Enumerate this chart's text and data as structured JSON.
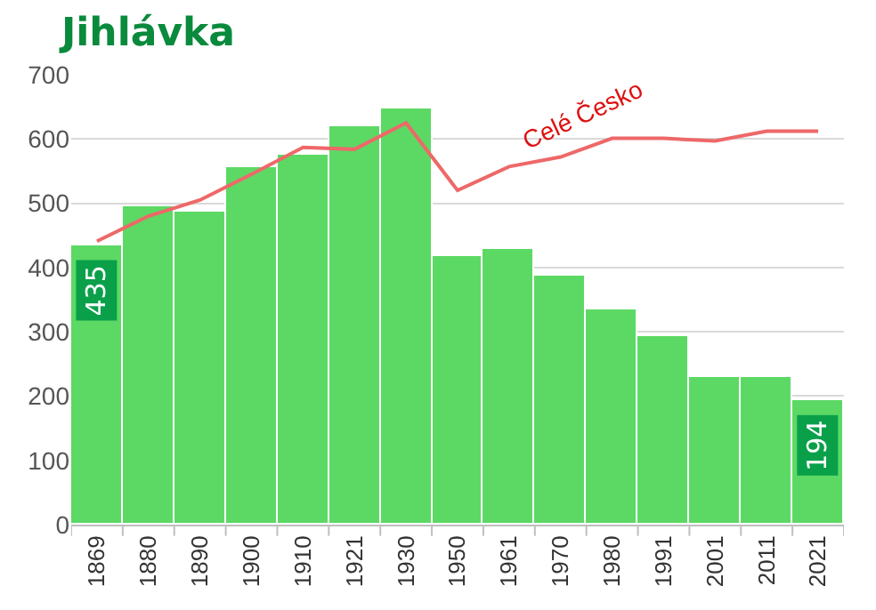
{
  "chart_data": {
    "type": "bar",
    "title": "Jihlávka",
    "categories": [
      "1869",
      "1880",
      "1890",
      "1900",
      "1910",
      "1921",
      "1930",
      "1950",
      "1961",
      "1970",
      "1980",
      "1991",
      "2001",
      "2011",
      "2021"
    ],
    "series": [
      {
        "color": "#5cd965",
        "values": [
          435,
          495,
          487,
          557,
          576,
          621,
          647,
          419,
          428,
          386,
          336,
          292,
          231,
          231,
          194
        ],
        "value_labels": [
          "435",
          null,
          null,
          null,
          null,
          null,
          null,
          null,
          null,
          null,
          null,
          null,
          null,
          null,
          "194"
        ]
      },
      {
        "type": "line",
        "name": "Celé Česko",
        "color": "#ee6868",
        "values": [
          441,
          480,
          505,
          545,
          587,
          584,
          625,
          520,
          557,
          572,
          601,
          601,
          597,
          612,
          612
        ]
      }
    ],
    "ylim": [
      0,
      700
    ],
    "yticks": [
      0,
      100,
      200,
      300,
      400,
      500,
      600,
      700
    ],
    "grid": "y",
    "legend": false,
    "marker": "none",
    "line_style": "solid"
  }
}
